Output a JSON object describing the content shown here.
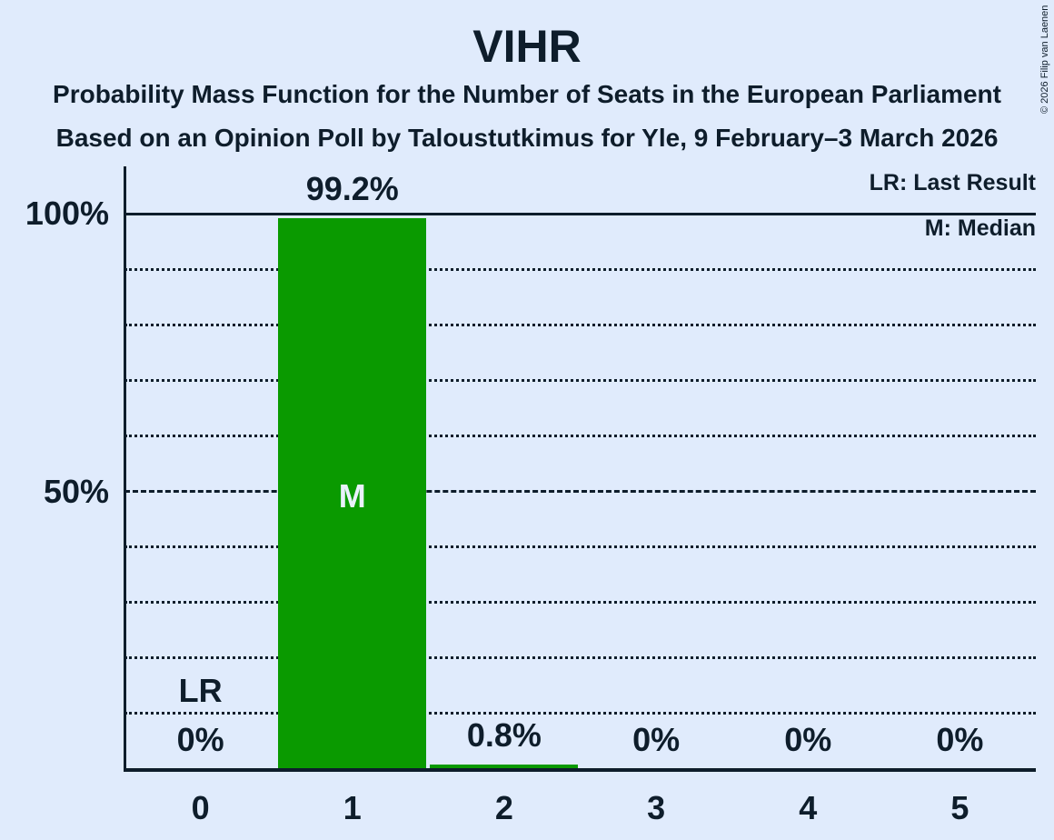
{
  "page": {
    "title": "VIHR",
    "subtitle_line1": "Probability Mass Function for the Number of Seats in the European Parliament",
    "subtitle_line2": "Based on an Opinion Poll by Taloustutkimus for Yle, 9 February–3 March 2026",
    "copyright": "© 2026 Filip van Laenen"
  },
  "legend": {
    "last_result": "LR: Last Result",
    "median": "M: Median"
  },
  "colors": {
    "background": "#e0ebfc",
    "text": "#0e1d2b",
    "bar": "#0a9a00",
    "bar_marker_text": "#eaf1fc"
  },
  "chart_data": {
    "type": "bar",
    "title": "VIHR",
    "categories": [
      "0",
      "1",
      "2",
      "3",
      "4",
      "5"
    ],
    "values": [
      0,
      99.2,
      0.8,
      0,
      0,
      0
    ],
    "value_labels": [
      "0%",
      "99.2%",
      "0.8%",
      "0%",
      "0%",
      "0%"
    ],
    "ylim": [
      0,
      100
    ],
    "y_ticks": [
      {
        "value": 100,
        "label": "100%"
      },
      {
        "value": 50,
        "label": "50%"
      }
    ],
    "gridline_values": [
      90,
      80,
      70,
      60,
      40,
      30,
      20,
      10
    ],
    "solid_line_value": 100,
    "dashed_line_value": 50,
    "grid": "dotted",
    "legend_position": "top-right",
    "median": {
      "seat_index": 1,
      "marker": "M"
    },
    "last_result": {
      "seat_index": 0,
      "marker": "LR"
    }
  }
}
